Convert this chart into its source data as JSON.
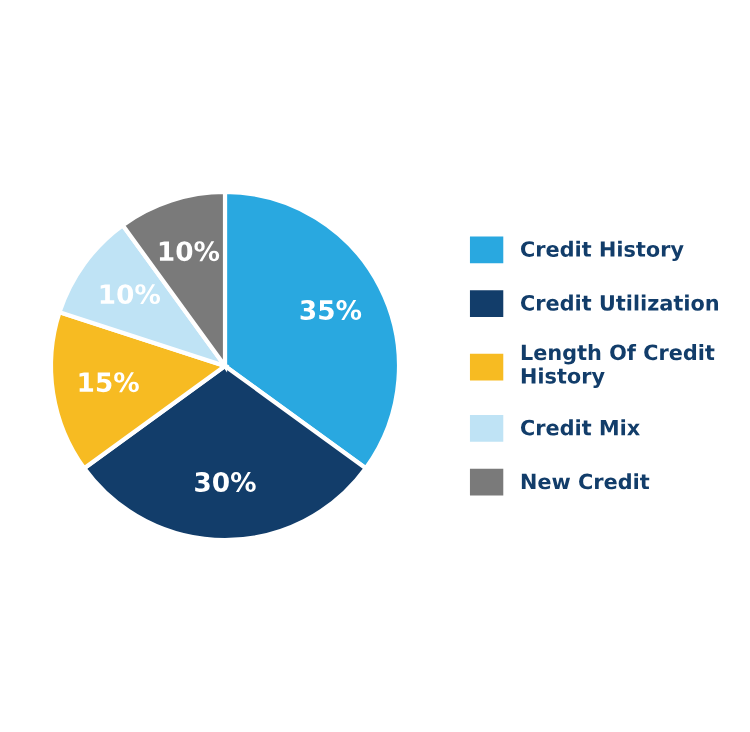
{
  "chart_data": {
    "type": "pie",
    "categories": [
      "Credit History",
      "Credit Utilization",
      "Length Of Credit History",
      "Credit Mix",
      "New Credit"
    ],
    "values": [
      35,
      30,
      15,
      10,
      10
    ],
    "colors": [
      "#29a8e0",
      "#123d6a",
      "#f7bb22",
      "#bfe3f5",
      "#7a7a7a"
    ],
    "value_labels": [
      "35%",
      "30%",
      "15%",
      "10%",
      "10%"
    ],
    "legend": "right"
  }
}
